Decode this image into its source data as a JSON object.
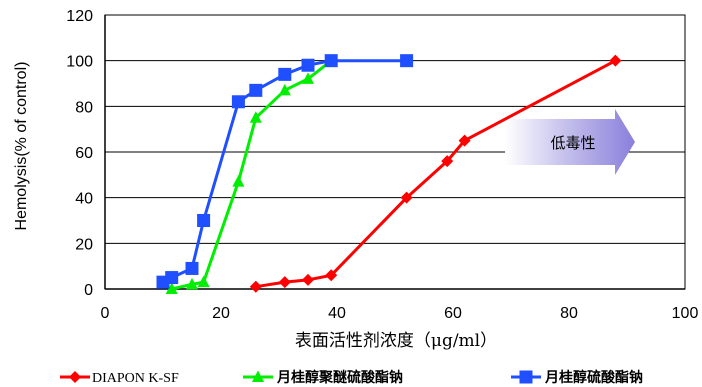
{
  "chart_data": {
    "type": "line",
    "title": "",
    "xlabel": "表面活性剂浓度（μg/ml）",
    "ylabel": "Hemolysis(% of control)",
    "xlim": [
      0,
      100
    ],
    "ylim": [
      0,
      120
    ],
    "xticks": [
      0,
      20,
      40,
      60,
      80,
      100
    ],
    "yticks": [
      0,
      20,
      40,
      60,
      80,
      100,
      120
    ],
    "grid": "horizontal",
    "legend_position": "bottom",
    "annotation": "低毒性",
    "series": [
      {
        "name": "DIAPON K-SF",
        "color": "#ff0000",
        "marker": "diamond",
        "points": [
          [
            26,
            1
          ],
          [
            31,
            3
          ],
          [
            35,
            4
          ],
          [
            39,
            6
          ],
          [
            52,
            40
          ],
          [
            59,
            56
          ],
          [
            62,
            65
          ],
          [
            88,
            100
          ]
        ]
      },
      {
        "name": "月桂醇聚醚硫酸酯钠",
        "color": "#00ee00",
        "marker": "triangle",
        "points": [
          [
            11.5,
            0
          ],
          [
            15,
            2
          ],
          [
            17,
            3
          ],
          [
            23,
            47
          ],
          [
            26,
            75
          ],
          [
            31,
            87
          ],
          [
            35,
            92
          ],
          [
            39,
            100
          ]
        ]
      },
      {
        "name": "月桂醇硫酸酯钠",
        "color": "#1f4fff",
        "marker": "square",
        "points": [
          [
            10,
            3
          ],
          [
            11.5,
            5
          ],
          [
            15,
            9
          ],
          [
            17,
            30
          ],
          [
            23,
            82
          ],
          [
            26,
            87
          ],
          [
            31,
            94
          ],
          [
            35,
            98
          ],
          [
            39,
            100
          ],
          [
            52,
            100
          ]
        ]
      }
    ]
  }
}
